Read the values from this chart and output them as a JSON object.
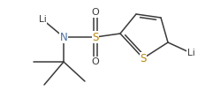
{
  "bg_color": "#ffffff",
  "line_color": "#3a3a3a",
  "figsize": [
    2.41,
    1.2
  ],
  "dpi": 100,
  "xlim": [
    0,
    2.41
  ],
  "ylim": [
    0,
    1.2
  ]
}
